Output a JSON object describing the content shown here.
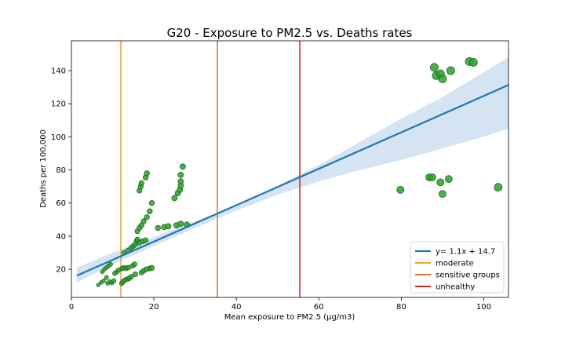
{
  "chart_data": {
    "type": "scatter",
    "title": "G20 - Exposure to PM2.5 vs. Deaths rates",
    "xlabel": "Mean exposure to PM2.5 (µg/m3)",
    "ylabel": "Deaths per 100,000",
    "xlim": [
      0,
      106
    ],
    "ylim": [
      3,
      158
    ],
    "xticks": [
      0,
      20,
      40,
      60,
      80,
      100
    ],
    "yticks": [
      20,
      40,
      60,
      80,
      100,
      120,
      140
    ],
    "grid": false,
    "legend_position": "lower right",
    "colors": {
      "point_fill": "#2ca02c",
      "point_edge": "#1b6b1b",
      "fit_line": "#1f77b4",
      "fit_band": "#c6dbef",
      "moderate": "#e8a33c",
      "sensitive_groups": "#e07a2e",
      "unhealthy": "#d62728"
    },
    "regression": {
      "label": "y= 1.1x + 14.7",
      "slope": 1.1,
      "intercept": 14.7,
      "x_range": [
        1.3,
        106
      ],
      "band_x": [
        1.3,
        10,
        20,
        30,
        40,
        50,
        60,
        70,
        80,
        90,
        100,
        106
      ],
      "band_lower": [
        12,
        23,
        34,
        45,
        55.5,
        65,
        73,
        80,
        86,
        93,
        100,
        105
      ],
      "band_upper": [
        21,
        30,
        39.5,
        49,
        58.5,
        70.5,
        83,
        97,
        111,
        124,
        139,
        148
      ]
    },
    "threshold_lines": [
      {
        "label": "moderate",
        "x": 12,
        "color_key": "moderate"
      },
      {
        "label": "sensitive groups",
        "x": 35.4,
        "color_key": "sensitive_groups"
      },
      {
        "label": "unhealthy",
        "x": 55.4,
        "color_key": "unhealthy"
      }
    ],
    "points": [
      {
        "x": 6.5,
        "y": 10.5,
        "s": 2.2
      },
      {
        "x": 7.2,
        "y": 12.0,
        "s": 2.3
      },
      {
        "x": 7.8,
        "y": 13.0,
        "s": 2.4
      },
      {
        "x": 8.5,
        "y": 15.0,
        "s": 2.5
      },
      {
        "x": 8.8,
        "y": 11.5,
        "s": 2.4
      },
      {
        "x": 9.3,
        "y": 12.5,
        "s": 2.6
      },
      {
        "x": 9.8,
        "y": 11.8,
        "s": 2.6
      },
      {
        "x": 10.3,
        "y": 13.0,
        "s": 2.7
      },
      {
        "x": 10.5,
        "y": 17.5,
        "s": 2.7
      },
      {
        "x": 11.0,
        "y": 18.5,
        "s": 2.7
      },
      {
        "x": 11.5,
        "y": 19.5,
        "s": 2.8
      },
      {
        "x": 12.2,
        "y": 11.5,
        "s": 2.8
      },
      {
        "x": 12.5,
        "y": 12.5,
        "s": 2.9
      },
      {
        "x": 13.0,
        "y": 13.5,
        "s": 2.9
      },
      {
        "x": 13.5,
        "y": 14.0,
        "s": 3.0
      },
      {
        "x": 14.0,
        "y": 14.5,
        "s": 3.0
      },
      {
        "x": 14.5,
        "y": 15.5,
        "s": 3.0
      },
      {
        "x": 15.5,
        "y": 17.0,
        "s": 3.1
      },
      {
        "x": 7.5,
        "y": 18.5,
        "s": 2.4
      },
      {
        "x": 8.0,
        "y": 20.0,
        "s": 2.5
      },
      {
        "x": 8.5,
        "y": 21.0,
        "s": 2.5
      },
      {
        "x": 9.0,
        "y": 22.0,
        "s": 2.6
      },
      {
        "x": 9.5,
        "y": 23.0,
        "s": 2.6
      },
      {
        "x": 12.3,
        "y": 20.5,
        "s": 2.9
      },
      {
        "x": 12.8,
        "y": 21.0,
        "s": 2.9
      },
      {
        "x": 13.3,
        "y": 20.5,
        "s": 2.9
      },
      {
        "x": 13.8,
        "y": 21.0,
        "s": 3.0
      },
      {
        "x": 14.8,
        "y": 22.0,
        "s": 3.0
      },
      {
        "x": 15.3,
        "y": 23.0,
        "s": 3.0
      },
      {
        "x": 17.0,
        "y": 18.0,
        "s": 3.1
      },
      {
        "x": 17.5,
        "y": 19.0,
        "s": 3.1
      },
      {
        "x": 18.2,
        "y": 20.0,
        "s": 3.2
      },
      {
        "x": 19.0,
        "y": 20.5,
        "s": 3.2
      },
      {
        "x": 19.5,
        "y": 20.8,
        "s": 3.2
      },
      {
        "x": 12.8,
        "y": 30.0,
        "s": 3.0
      },
      {
        "x": 13.8,
        "y": 31.5,
        "s": 3.0
      },
      {
        "x": 14.5,
        "y": 33.0,
        "s": 3.0
      },
      {
        "x": 15.0,
        "y": 34.0,
        "s": 3.1
      },
      {
        "x": 15.5,
        "y": 35.0,
        "s": 3.1
      },
      {
        "x": 15.8,
        "y": 37.0,
        "s": 3.1
      },
      {
        "x": 16.0,
        "y": 38.0,
        "s": 3.1
      },
      {
        "x": 16.5,
        "y": 36.0,
        "s": 3.1
      },
      {
        "x": 17.3,
        "y": 37.0,
        "s": 3.2
      },
      {
        "x": 18.0,
        "y": 37.5,
        "s": 3.2
      },
      {
        "x": 16.0,
        "y": 43.0,
        "s": 3.1
      },
      {
        "x": 16.5,
        "y": 45.0,
        "s": 3.2
      },
      {
        "x": 17.0,
        "y": 46.5,
        "s": 3.2
      },
      {
        "x": 17.5,
        "y": 49.0,
        "s": 3.2
      },
      {
        "x": 18.3,
        "y": 51.5,
        "s": 3.2
      },
      {
        "x": 19.0,
        "y": 55.0,
        "s": 3.3
      },
      {
        "x": 19.5,
        "y": 60.0,
        "s": 3.3
      },
      {
        "x": 16.5,
        "y": 67.5,
        "s": 3.2
      },
      {
        "x": 16.8,
        "y": 70.0,
        "s": 3.2
      },
      {
        "x": 17.0,
        "y": 72.0,
        "s": 3.2
      },
      {
        "x": 18.0,
        "y": 75.5,
        "s": 3.3
      },
      {
        "x": 18.3,
        "y": 78.0,
        "s": 3.3
      },
      {
        "x": 21.0,
        "y": 45.0,
        "s": 3.3
      },
      {
        "x": 22.5,
        "y": 45.5,
        "s": 3.4
      },
      {
        "x": 23.5,
        "y": 46.0,
        "s": 3.4
      },
      {
        "x": 25.5,
        "y": 46.5,
        "s": 3.5
      },
      {
        "x": 26.5,
        "y": 47.5,
        "s": 3.5
      },
      {
        "x": 28.0,
        "y": 47.0,
        "s": 3.5
      },
      {
        "x": 25.0,
        "y": 63.0,
        "s": 3.5
      },
      {
        "x": 25.8,
        "y": 66.0,
        "s": 3.5
      },
      {
        "x": 26.3,
        "y": 68.0,
        "s": 3.5
      },
      {
        "x": 26.5,
        "y": 70.5,
        "s": 3.5
      },
      {
        "x": 26.5,
        "y": 73.0,
        "s": 3.5
      },
      {
        "x": 26.5,
        "y": 77.0,
        "s": 3.5
      },
      {
        "x": 27.0,
        "y": 82.0,
        "s": 3.5
      },
      {
        "x": 79.8,
        "y": 68.0,
        "s": 4.5
      },
      {
        "x": 86.8,
        "y": 75.5,
        "s": 4.5
      },
      {
        "x": 87.5,
        "y": 75.5,
        "s": 4.5
      },
      {
        "x": 89.5,
        "y": 72.5,
        "s": 4.5
      },
      {
        "x": 90.0,
        "y": 65.5,
        "s": 4.5
      },
      {
        "x": 91.5,
        "y": 74.5,
        "s": 4.5
      },
      {
        "x": 103.5,
        "y": 69.5,
        "s": 5.0
      },
      {
        "x": 88.0,
        "y": 142.0,
        "s": 5.0
      },
      {
        "x": 88.5,
        "y": 137.0,
        "s": 5.0
      },
      {
        "x": 89.5,
        "y": 138.0,
        "s": 5.0
      },
      {
        "x": 90.0,
        "y": 135.0,
        "s": 5.0
      },
      {
        "x": 92.0,
        "y": 140.0,
        "s": 5.0
      },
      {
        "x": 96.5,
        "y": 145.5,
        "s": 5.0
      },
      {
        "x": 97.5,
        "y": 145.0,
        "s": 5.0
      }
    ]
  }
}
